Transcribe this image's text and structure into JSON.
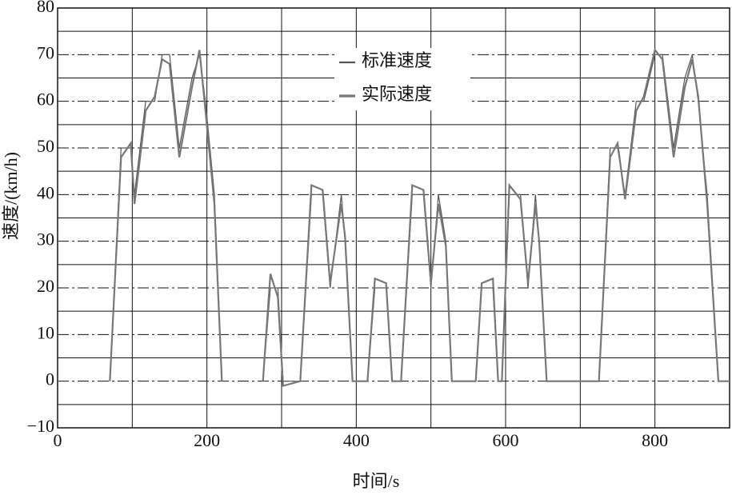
{
  "chart_data": {
    "type": "line",
    "x_label": "时间/s",
    "y_label": "速度/(km/h)",
    "xlim": [
      0,
      900
    ],
    "ylim": [
      -10,
      80
    ],
    "xticks": [
      0,
      200,
      400,
      600,
      800
    ],
    "yticks": [
      {
        "value": -10,
        "label": "−10"
      },
      0,
      10,
      20,
      30,
      40,
      50,
      60,
      70,
      80
    ],
    "minor_xticks": [
      100,
      300,
      500,
      700,
      900
    ],
    "minor_yticks": [
      -5,
      5,
      15,
      25,
      35,
      45,
      55,
      65,
      75
    ],
    "grid": true,
    "x": [
      70,
      85,
      98,
      103,
      118,
      130,
      140,
      150,
      163,
      180,
      190,
      198,
      210,
      220,
      250,
      275,
      285,
      295,
      302,
      325,
      340,
      355,
      365,
      380,
      385,
      395,
      415,
      425,
      440,
      448,
      460,
      475,
      490,
      500,
      510,
      520,
      528,
      560,
      568,
      583,
      590,
      595,
      605,
      620,
      630,
      640,
      645,
      655,
      725,
      740,
      750,
      760,
      775,
      785,
      800,
      810,
      825,
      840,
      850,
      858,
      870,
      885,
      900
    ],
    "series": [
      {
        "name": "标准速度",
        "color": "#555555",
        "width": 1.2,
        "values": [
          0,
          50,
          50,
          40,
          60,
          60,
          70,
          70,
          50,
          65,
          70,
          60,
          40,
          0,
          null,
          0,
          20,
          20,
          0,
          0,
          40,
          40,
          20,
          40,
          30,
          0,
          0,
          20,
          20,
          0,
          0,
          40,
          40,
          20,
          40,
          30,
          0,
          0,
          20,
          20,
          0,
          0,
          40,
          40,
          20,
          40,
          30,
          0,
          0,
          50,
          50,
          40,
          60,
          60,
          70,
          70,
          50,
          65,
          70,
          60,
          40,
          0,
          0
        ]
      },
      {
        "name": "实际速度",
        "color": "#777777",
        "width": 2.2,
        "values": [
          0,
          48,
          51,
          38,
          58,
          61,
          69,
          68,
          48,
          63,
          71,
          58,
          38,
          0,
          null,
          0,
          23,
          18,
          -1,
          0,
          42,
          41,
          21,
          38,
          31,
          0,
          0,
          22,
          21,
          0,
          0,
          42,
          41,
          21,
          38,
          29,
          0,
          0,
          21,
          22,
          0,
          0,
          42,
          39,
          21,
          38,
          30,
          0,
          0,
          48,
          51,
          39,
          58,
          61,
          71,
          69,
          48,
          63,
          69,
          61,
          38,
          0,
          0
        ]
      }
    ]
  }
}
